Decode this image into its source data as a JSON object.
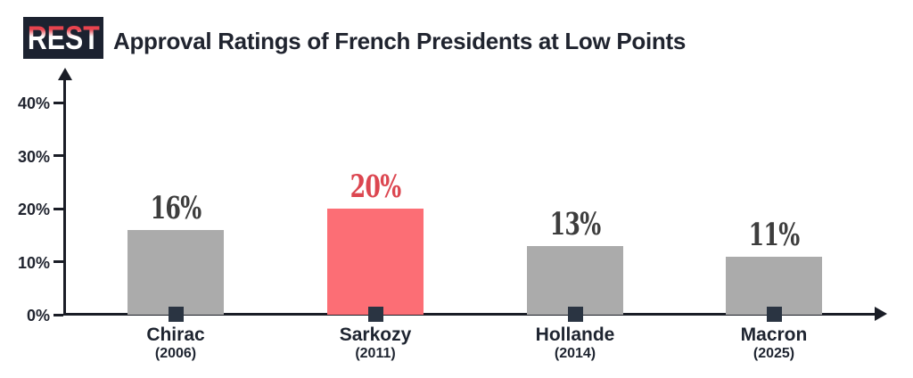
{
  "logo": {
    "text": "REST",
    "bg_color": "#1c2230",
    "accent_color": "#e8434e"
  },
  "header": {
    "title": "Approval Ratings of French Presidents at Low Points"
  },
  "chart_data": {
    "type": "bar",
    "title": "Approval Ratings of French Presidents at Low Points",
    "categories": [
      "Chirac",
      "Sarkozy",
      "Hollande",
      "Macron"
    ],
    "category_years": [
      "(2006)",
      "(2011)",
      "(2014)",
      "(2025)"
    ],
    "values": [
      16,
      20,
      13,
      11
    ],
    "value_labels": [
      "16%",
      "20%",
      "13%",
      "11%"
    ],
    "highlight_index": 1,
    "bar_color": "#ababab",
    "highlight_bar_color": "#fc6e75",
    "value_label_color": "#3d3d3d",
    "highlight_value_label_color": "#dc4650",
    "xlabel": "",
    "ylabel": "",
    "ylim": [
      0,
      40
    ],
    "yticks": [
      "0%",
      "10%",
      "20%",
      "30%",
      "40%"
    ],
    "ytick_values": [
      0,
      10,
      20,
      30,
      40
    ],
    "grid": false,
    "legend": false,
    "axis_color": "#1a1d26",
    "axis_arrows": true
  }
}
